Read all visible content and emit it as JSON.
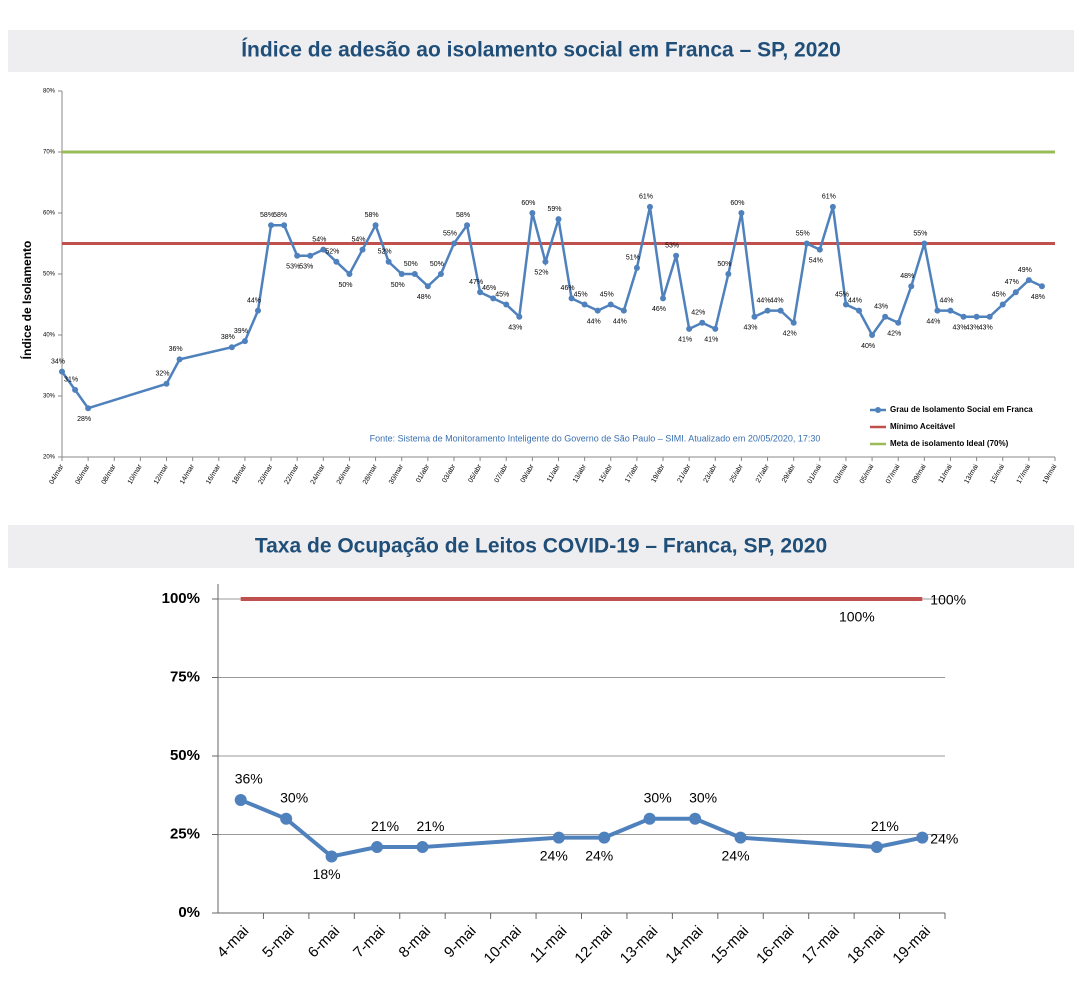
{
  "chart_data": [
    {
      "type": "line",
      "title": "Índice de adesão ao isolamento social em Franca – SP, 2020",
      "y_label": "Índice de Isolamento",
      "source": "Fonte: Sistema de Monitoramento Inteligente do Governo de São Paulo – SIMI. Atualizado em 20/05/2020, 17:30",
      "ylim": [
        20,
        80
      ],
      "yticks": [
        {
          "value": 20,
          "label": "20%"
        },
        {
          "value": 30,
          "label": "30%"
        },
        {
          "value": 40,
          "label": "40%"
        },
        {
          "value": 50,
          "label": "50%"
        },
        {
          "value": 60,
          "label": "60%"
        },
        {
          "value": 70,
          "label": "70%"
        },
        {
          "value": 80,
          "label": "80%"
        }
      ],
      "xlim": [
        "04/mar",
        "19/mai"
      ],
      "xticks": [
        "04/mar",
        "06/mar",
        "08/mar",
        "10/mar",
        "12/mar",
        "14/mar",
        "16/mar",
        "18/mar",
        "20/mar",
        "22/mar",
        "24/mar",
        "26/mar",
        "28/mar",
        "30/mar",
        "01/abr",
        "03/abr",
        "05/abr",
        "07/abr",
        "09/abr",
        "11/abr",
        "13/abr",
        "15/abr",
        "17/abr",
        "19/abr",
        "21/abr",
        "23/abr",
        "25/abr",
        "27/abr",
        "29/abr",
        "01/mai",
        "03/mai",
        "05/mai",
        "07/mai",
        "09/mai",
        "11/mai",
        "13/mai",
        "15/mai",
        "17/mai",
        "19/mai"
      ],
      "x": [
        "04/mar",
        "05/mar",
        "06/mar",
        "12/mar",
        "13/mar",
        "17/mar",
        "18/mar",
        "19/mar",
        "20/mar",
        "21/mar",
        "22/mar",
        "23/mar",
        "24/mar",
        "25/mar",
        "26/mar",
        "27/mar",
        "28/mar",
        "29/mar",
        "30/mar",
        "31/mar",
        "01/abr",
        "02/abr",
        "03/abr",
        "04/abr",
        "05/abr",
        "06/abr",
        "07/abr",
        "08/abr",
        "09/abr",
        "10/abr",
        "11/abr",
        "12/abr",
        "13/abr",
        "14/abr",
        "15/abr",
        "16/abr",
        "17/abr",
        "18/abr",
        "19/abr",
        "20/abr",
        "21/abr",
        "22/abr",
        "23/abr",
        "24/abr",
        "25/abr",
        "26/abr",
        "27/abr",
        "28/abr",
        "29/abr",
        "30/abr",
        "01/mai",
        "02/mai",
        "03/mai",
        "04/mai",
        "05/mai",
        "06/mai",
        "07/mai",
        "08/mai",
        "09/mai",
        "10/mai",
        "11/mai",
        "12/mai",
        "13/mai",
        "14/mai",
        "15/mai",
        "16/mai",
        "17/mai",
        "18/mai"
      ],
      "series": [
        {
          "name": "Grau de Isolamento Social em Franca",
          "color": "#4f81bd",
          "values": [
            34,
            31,
            28,
            32,
            36,
            38,
            39,
            44,
            58,
            58,
            53,
            53,
            54,
            52,
            50,
            54,
            58,
            52,
            50,
            50,
            48,
            50,
            55,
            58,
            47,
            46,
            45,
            43,
            60,
            52,
            59,
            46,
            45,
            44,
            45,
            44,
            51,
            61,
            46,
            53,
            41,
            42,
            41,
            50,
            60,
            43,
            44,
            44,
            42,
            55,
            54,
            61,
            45,
            44,
            40,
            43,
            42,
            48,
            55,
            44,
            44,
            43,
            43,
            43,
            45,
            47,
            49,
            48
          ],
          "value_labels": [
            "34%",
            "31%",
            "28%",
            "32%",
            "36%",
            "38%",
            "39%",
            "44%",
            "58%",
            "58%",
            "53%",
            "53%",
            "54%",
            "52%",
            "50%",
            "54%",
            "58%",
            "52%",
            "50%",
            "50%",
            "48%",
            "50%",
            "55%",
            "58%",
            "47%",
            "46%",
            "45%",
            "43%",
            "60%",
            "52%",
            "59%",
            "46%",
            "45%",
            "44%",
            "45%",
            "44%",
            "51%",
            "61%",
            "46%",
            "53%",
            "41%",
            "42%",
            "41%",
            "50%",
            "60%",
            "43%",
            "44%",
            "44%",
            "42%",
            "55%",
            "54%",
            "61%",
            "45%",
            "44%",
            "40%",
            "43%",
            "42%",
            "48%",
            "55%",
            "44%",
            "44%",
            "43%",
            "43%",
            "43%",
            "45%",
            "47%",
            "49%",
            "48%"
          ]
        }
      ],
      "lines": [
        {
          "name": "Mínimo Aceitável",
          "color": "#c0504d",
          "value": 55
        },
        {
          "name": "Meta de isolamento Ideal (70%)",
          "color": "#9bbb59",
          "value": 70
        }
      ],
      "legend": "lower right"
    },
    {
      "type": "line",
      "title": "Taxa de Ocupação de Leitos COVID-19 – Franca, SP, 2020",
      "ylim": [
        0,
        100
      ],
      "yticks": [
        {
          "value": 0,
          "label": "0%"
        },
        {
          "value": 25,
          "label": "25%"
        },
        {
          "value": 50,
          "label": "50%"
        },
        {
          "value": 75,
          "label": "75%"
        },
        {
          "value": 100,
          "label": "100%"
        }
      ],
      "grid": true,
      "categories": [
        "4-mai",
        "5-mai",
        "6-mai",
        "7-mai",
        "8-mai",
        "9-mai",
        "10-mai",
        "11-mai",
        "12-mai",
        "13-mai",
        "14-mai",
        "15-mai",
        "16-mai",
        "17-mai",
        "18-mai",
        "19-mai"
      ],
      "series": [
        {
          "color": "#c0504d",
          "x": [
            "4-mai",
            "18-mai",
            "19-mai"
          ],
          "values": [
            100,
            100,
            100
          ],
          "value_labels": [
            null,
            "100%",
            "100%"
          ]
        },
        {
          "color": "#4f81bd",
          "x": [
            "4-mai",
            "5-mai",
            "6-mai",
            "7-mai",
            "8-mai",
            "11-mai",
            "12-mai",
            "13-mai",
            "14-mai",
            "15-mai",
            "18-mai",
            "19-mai"
          ],
          "values": [
            36,
            30,
            18,
            21,
            21,
            24,
            24,
            30,
            30,
            24,
            21,
            24
          ],
          "value_labels": [
            "36%",
            "30%",
            "18%",
            "21%",
            "21%",
            "24%",
            "24%",
            "30%",
            "30%",
            "24%",
            "21%",
            "24%"
          ]
        }
      ]
    }
  ]
}
